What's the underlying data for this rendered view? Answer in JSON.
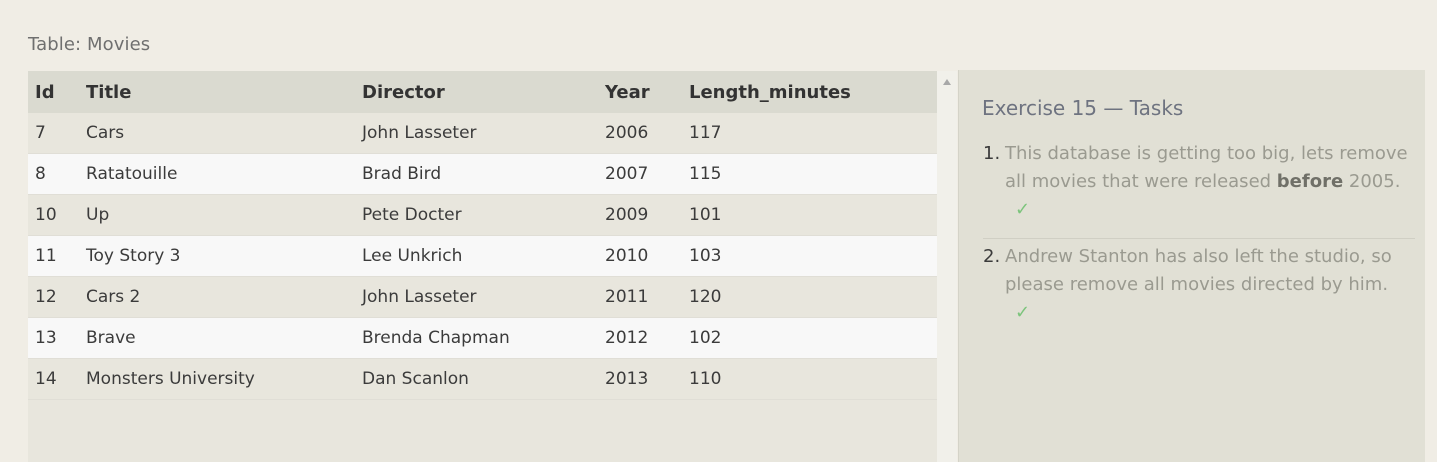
{
  "table": {
    "caption": "Table: Movies",
    "columns": [
      "Id",
      "Title",
      "Director",
      "Year",
      "Length_minutes"
    ],
    "rows": [
      [
        "7",
        "Cars",
        "John Lasseter",
        "2006",
        "117"
      ],
      [
        "8",
        "Ratatouille",
        "Brad Bird",
        "2007",
        "115"
      ],
      [
        "10",
        "Up",
        "Pete Docter",
        "2009",
        "101"
      ],
      [
        "11",
        "Toy Story 3",
        "Lee Unkrich",
        "2010",
        "103"
      ],
      [
        "12",
        "Cars 2",
        "John Lasseter",
        "2011",
        "120"
      ],
      [
        "13",
        "Brave",
        "Brenda Chapman",
        "2012",
        "102"
      ],
      [
        "14",
        "Monsters University",
        "Dan Scanlon",
        "2013",
        "110"
      ]
    ]
  },
  "tasks": {
    "title": "Exercise 15 — Tasks",
    "items": [
      {
        "number": "1.",
        "text_before": "This database is getting too big, lets remove all movies that were released ",
        "emphasis": "before",
        "text_after": " 2005.",
        "check": "✓"
      },
      {
        "number": "2.",
        "text": "Andrew Stanton has also left the studio, so please remove all movies directed by him.",
        "check": "✓"
      }
    ]
  },
  "colors": {
    "background": "#f0ede5",
    "check": "#7cc47c",
    "header_row": "#dadad0"
  }
}
